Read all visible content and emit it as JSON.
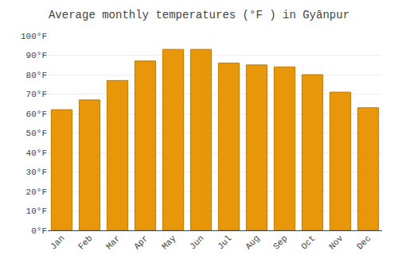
{
  "chart_data": {
    "type": "bar",
    "title": "Average monthly temperatures (°F ) in Gyānpur",
    "categories": [
      "Jan",
      "Feb",
      "Mar",
      "Apr",
      "May",
      "Jun",
      "Jul",
      "Aug",
      "Sep",
      "Oct",
      "Nov",
      "Dec"
    ],
    "values": [
      62,
      67,
      77,
      87,
      93,
      93,
      86,
      85,
      84,
      80,
      71,
      63
    ],
    "color": "#E8960A",
    "ylim": [
      0,
      100
    ],
    "yticks": [
      {
        "value": 0,
        "label": "0°F"
      },
      {
        "value": 10,
        "label": "10°F"
      },
      {
        "value": 20,
        "label": "20°F"
      },
      {
        "value": 30,
        "label": "30°F"
      },
      {
        "value": 40,
        "label": "40°F"
      },
      {
        "value": 50,
        "label": "50°F"
      },
      {
        "value": 60,
        "label": "60°F"
      },
      {
        "value": 70,
        "label": "70°F"
      },
      {
        "value": 80,
        "label": "80°F"
      },
      {
        "value": 90,
        "label": "90°F"
      },
      {
        "value": 100,
        "label": "100°F"
      }
    ],
    "grid": true
  }
}
